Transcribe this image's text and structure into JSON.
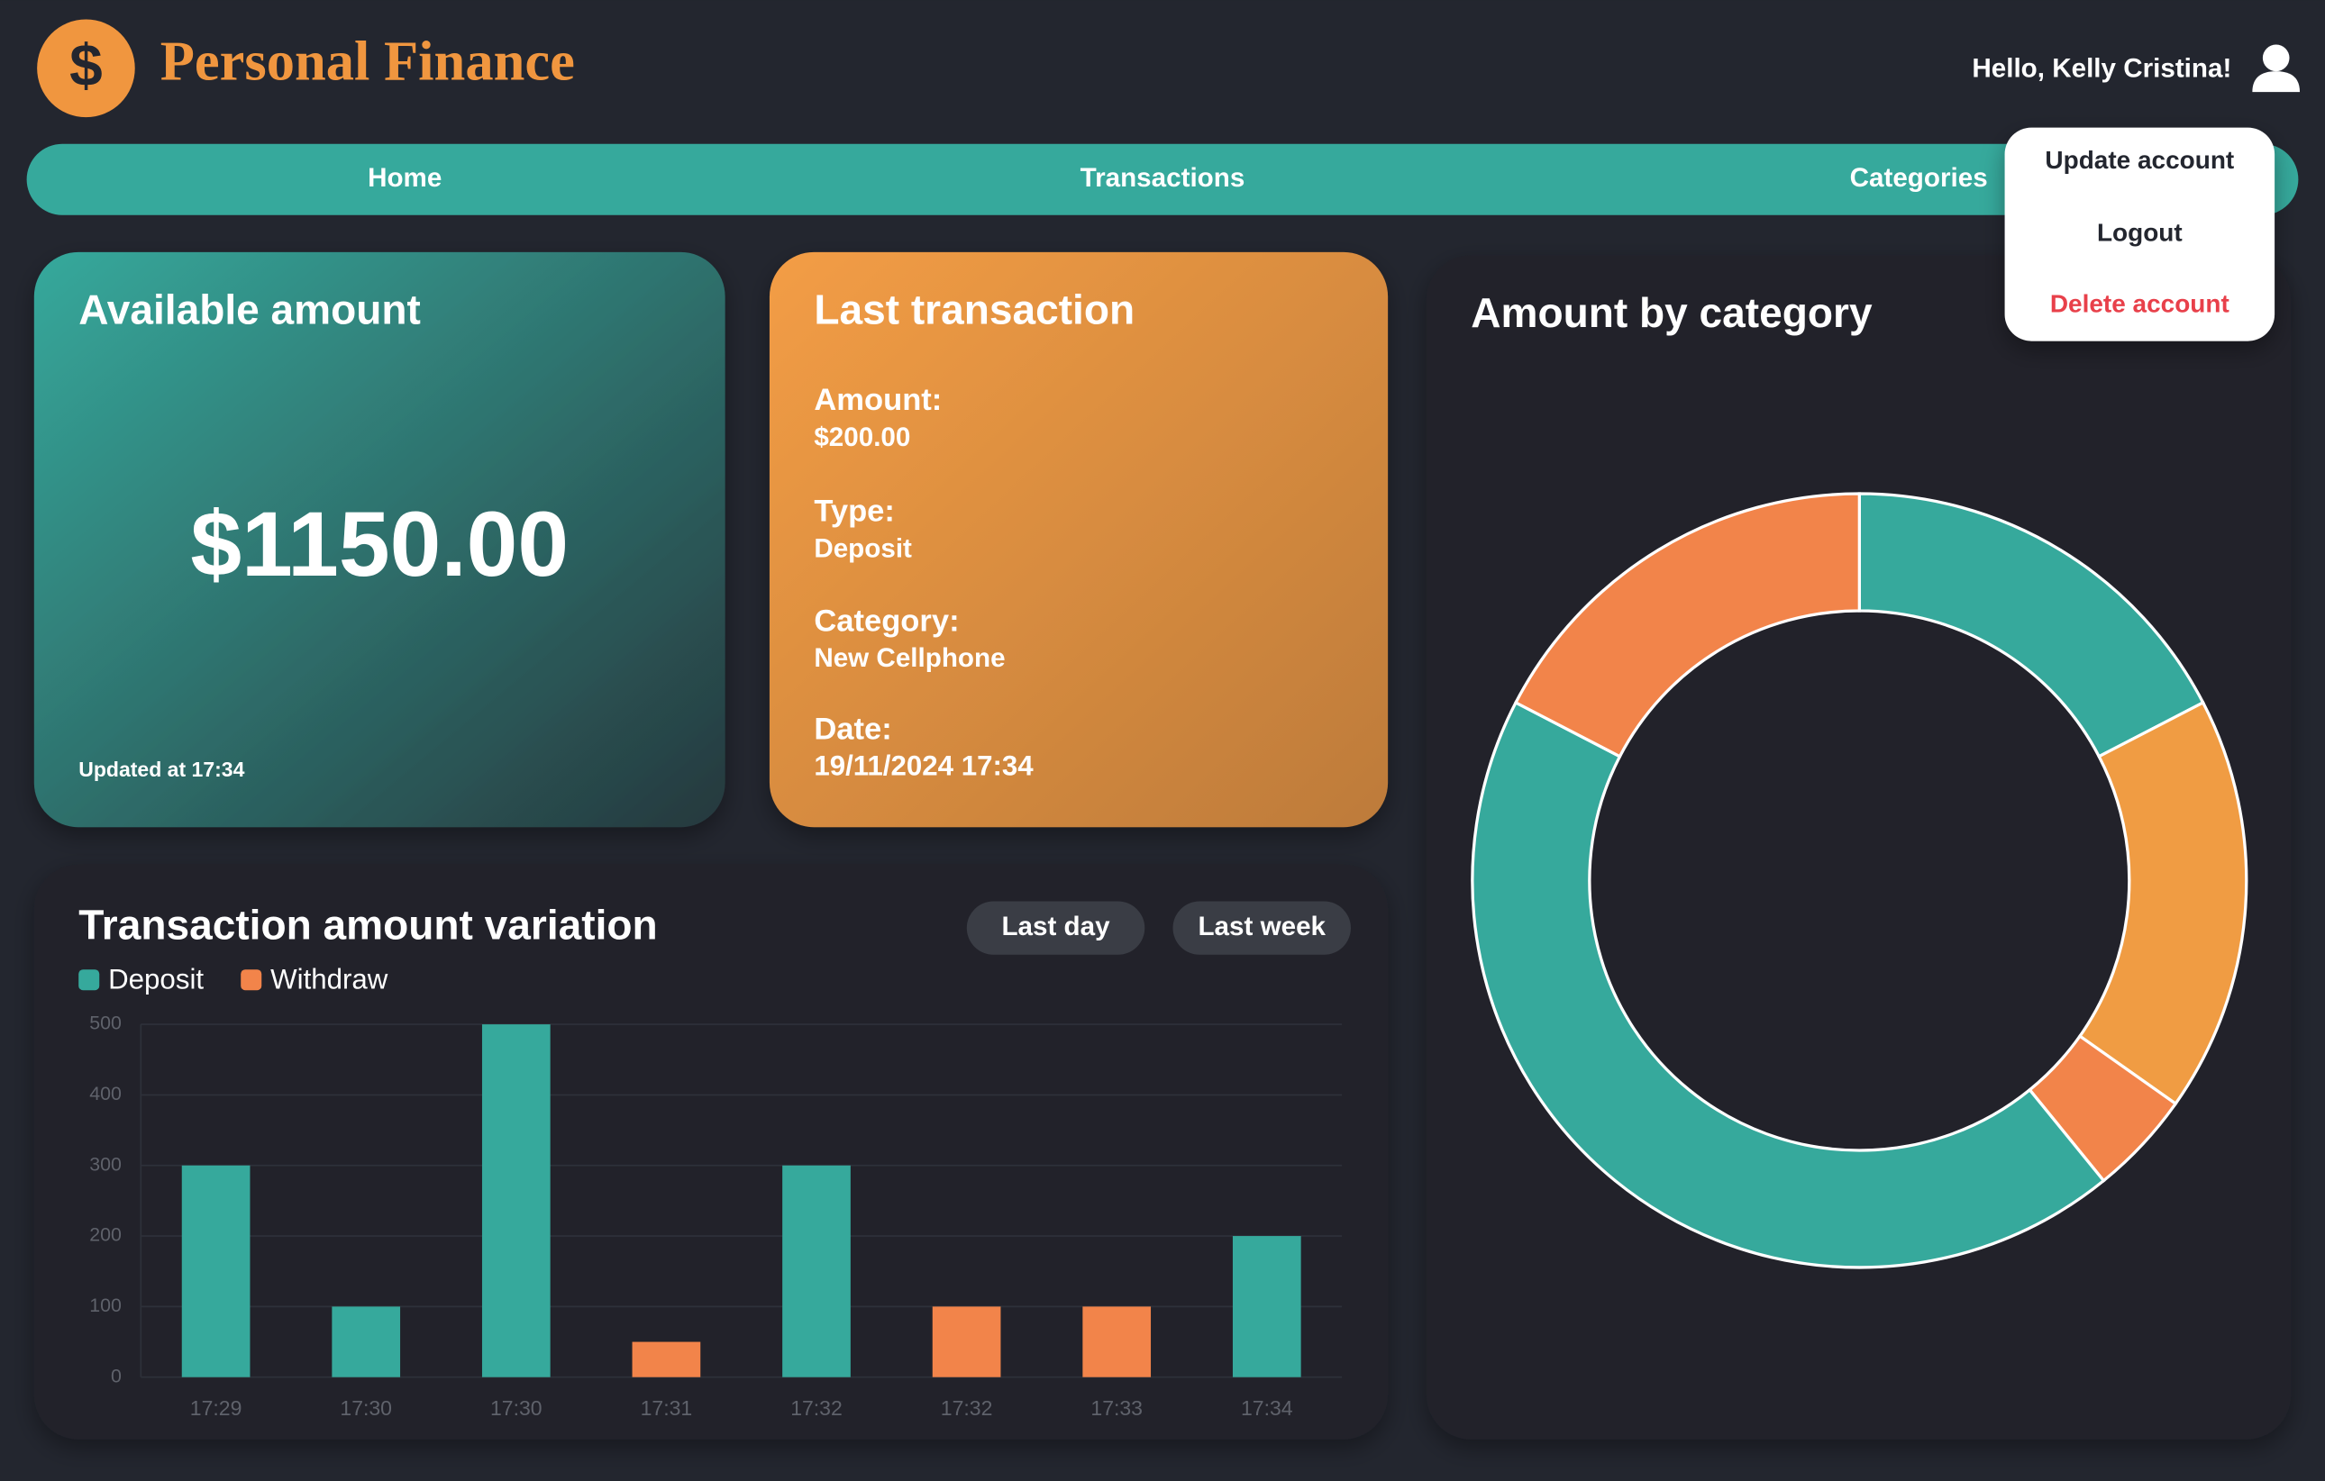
{
  "header": {
    "logo": "$",
    "title": "Personal Finance",
    "greeting": "Hello, Kelly Cristina!"
  },
  "nav": [
    "Home",
    "Transactions",
    "Categories"
  ],
  "menu": [
    "Update account",
    "Logout",
    "Delete account"
  ],
  "available": {
    "title": "Available amount",
    "amount": "$1150.00",
    "updated": "Updated at 17:34"
  },
  "last_transaction": {
    "title": "Last transaction",
    "fields": [
      {
        "label": "Amount:",
        "value": "$200.00"
      },
      {
        "label": "Type:",
        "value": "Deposit"
      },
      {
        "label": "Category:",
        "value": "New Cellphone"
      },
      {
        "label": "Date:",
        "value": "19/11/2024 17:34"
      }
    ]
  },
  "filters": [
    "Last day",
    "Last week"
  ],
  "chart_data": [
    {
      "type": "bar",
      "title": "Transaction amount variation",
      "categories": [
        "17:29",
        "17:30",
        "17:30",
        "17:31",
        "17:32",
        "17:32",
        "17:33",
        "17:34"
      ],
      "series": [
        {
          "name": "Deposit",
          "color": "#36a99c",
          "values": [
            300,
            100,
            500,
            null,
            300,
            null,
            null,
            200
          ]
        },
        {
          "name": "Withdraw",
          "color": "#f2844a",
          "values": [
            null,
            null,
            null,
            50,
            null,
            100,
            100,
            null
          ]
        }
      ],
      "ylim": [
        0,
        500
      ],
      "yticks": [
        0,
        100,
        200,
        300,
        400,
        500
      ],
      "grid": true
    },
    {
      "type": "pie",
      "title": "Amount by category",
      "values": [
        200,
        200,
        50,
        500,
        200
      ],
      "colors": [
        "#36a99c",
        "#f09c43",
        "#f2844a",
        "#36a99c",
        "#f2844a"
      ]
    }
  ]
}
